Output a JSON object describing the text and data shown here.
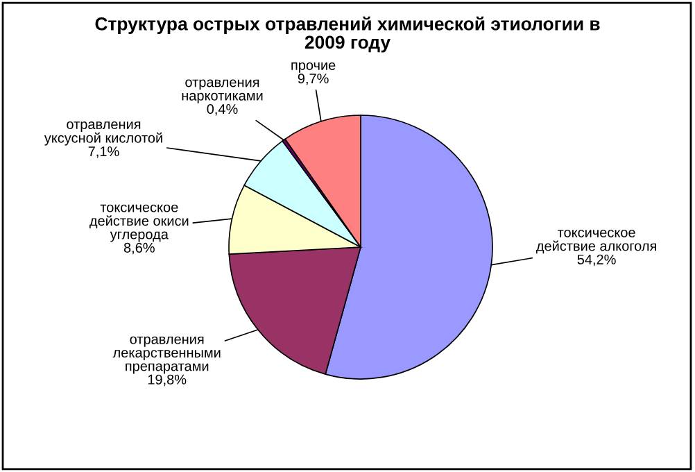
{
  "chart_data": {
    "type": "pie",
    "title": "Структура острых отравлений химической этиологии в\n2009 году",
    "categories": [
      "токсическое\nдействие алкоголя",
      "отравления\nлекарственными\nпрепаратами",
      "токсическое\nдействие окиси\nуглерода",
      "отравления\nуксусной кислотой",
      "отравления\nнаркотиками",
      "прочие"
    ],
    "values": [
      54.2,
      19.8,
      8.6,
      7.1,
      0.4,
      9.7
    ],
    "value_labels": [
      "54,2%",
      "19,8%",
      "8,6%",
      "7,1%",
      "0,4%",
      "9,7%"
    ],
    "colors": [
      "#9999ff",
      "#993366",
      "#ffffcc",
      "#ccffff",
      "#660066",
      "#ff8080"
    ],
    "legend": false
  }
}
